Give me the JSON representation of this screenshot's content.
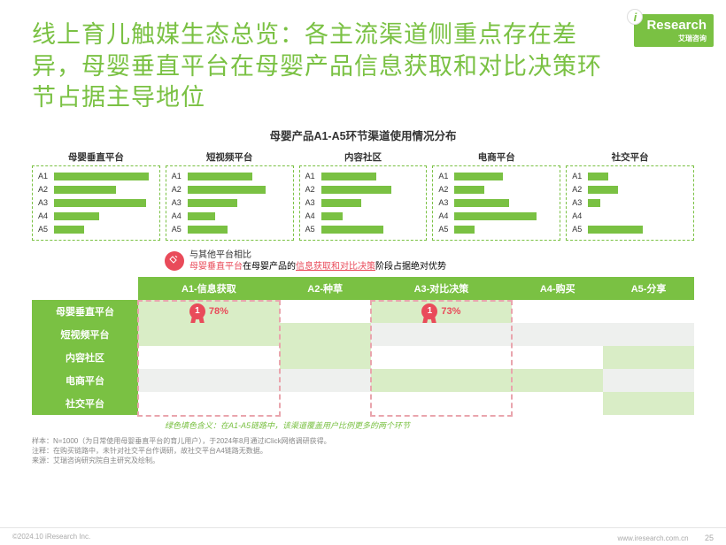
{
  "logo": {
    "brand": "Research",
    "i": "i",
    "sub": "艾瑞咨询"
  },
  "title": "线上育儿触媒生态总览：各主流渠道侧重点存在差异，母婴垂直平台在母婴产品信息获取和对比决策环节占据主导地位",
  "chart_title": "母婴产品A1-A5环节渠道使用情况分布",
  "colors": {
    "brand_green": "#7ac143",
    "accent_red": "#e94b5a",
    "light_green_fill": "#d9edc6",
    "alt_row": "#eef0ee",
    "dash_pink": "#e9a5ad"
  },
  "mini_charts": [
    {
      "name": "母婴垂直平台",
      "bars": [
        {
          "l": "A1",
          "v": 95
        },
        {
          "l": "A2",
          "v": 62
        },
        {
          "l": "A3",
          "v": 92
        },
        {
          "l": "A4",
          "v": 45
        },
        {
          "l": "A5",
          "v": 30
        }
      ]
    },
    {
      "name": "短视频平台",
      "bars": [
        {
          "l": "A1",
          "v": 65
        },
        {
          "l": "A2",
          "v": 78
        },
        {
          "l": "A3",
          "v": 50
        },
        {
          "l": "A4",
          "v": 28
        },
        {
          "l": "A5",
          "v": 40
        }
      ]
    },
    {
      "name": "内容社区",
      "bars": [
        {
          "l": "A1",
          "v": 55
        },
        {
          "l": "A2",
          "v": 70
        },
        {
          "l": "A3",
          "v": 40
        },
        {
          "l": "A4",
          "v": 22
        },
        {
          "l": "A5",
          "v": 62
        }
      ]
    },
    {
      "name": "电商平台",
      "bars": [
        {
          "l": "A1",
          "v": 48
        },
        {
          "l": "A2",
          "v": 30
        },
        {
          "l": "A3",
          "v": 55
        },
        {
          "l": "A4",
          "v": 82
        },
        {
          "l": "A5",
          "v": 20
        }
      ]
    },
    {
      "name": "社交平台",
      "bars": [
        {
          "l": "A1",
          "v": 20
        },
        {
          "l": "A2",
          "v": 30
        },
        {
          "l": "A3",
          "v": 12
        },
        {
          "l": "A4",
          "v": 0
        },
        {
          "l": "A5",
          "v": 55
        }
      ]
    }
  ],
  "callout": {
    "line1": "与其他平台相比",
    "line2_a": "母婴垂直平台",
    "line2_b": "在母婴产品的",
    "line2_c": "信息获取和对比决策",
    "line2_d": "阶段占据绝对优势"
  },
  "table": {
    "headers": [
      "A1-信息获取",
      "A2-种草",
      "A3-对比决策",
      "A4-购买",
      "A5-分享"
    ],
    "rows": [
      {
        "name": "母婴垂直平台",
        "cells": [
          {
            "hl": true,
            "medal": "1",
            "pct": "78%"
          },
          {
            "hl": false
          },
          {
            "hl": true,
            "medal": "1",
            "pct": "73%"
          },
          {
            "hl": false
          },
          {
            "hl": false
          }
        ]
      },
      {
        "name": "短视频平台",
        "cells": [
          {
            "hl": true
          },
          {
            "hl": true
          },
          {
            "hl": false
          },
          {
            "hl": false
          },
          {
            "hl": false
          }
        ]
      },
      {
        "name": "内容社区",
        "cells": [
          {
            "hl": false
          },
          {
            "hl": true
          },
          {
            "hl": false
          },
          {
            "hl": false
          },
          {
            "hl": true
          }
        ]
      },
      {
        "name": "电商平台",
        "cells": [
          {
            "hl": false
          },
          {
            "hl": false
          },
          {
            "hl": true
          },
          {
            "hl": true
          },
          {
            "hl": false
          }
        ]
      },
      {
        "name": "社交平台",
        "cells": [
          {
            "hl": false
          },
          {
            "hl": false
          },
          {
            "hl": false
          },
          {
            "hl": false
          },
          {
            "hl": true
          }
        ]
      }
    ],
    "highlight_cols": [
      0,
      2
    ]
  },
  "legend_note": "绿色填色含义：在A1-A5链路中，该渠道覆盖用户比例更多的两个环节",
  "footnotes": [
    "样本：N=1000（为日常使用母婴垂直平台的育儿用户），于2024年8月通过iClick网络调研获得。",
    "注释：在购买链路中，未针对社交平台作调研，故社交平台A4链路无数据。",
    "来源：艾瑞咨询研究院自主研究及绘制。"
  ],
  "footer": {
    "left": "©2024.10 iResearch Inc.",
    "right": "www.iresearch.com.cn",
    "page": "25"
  }
}
